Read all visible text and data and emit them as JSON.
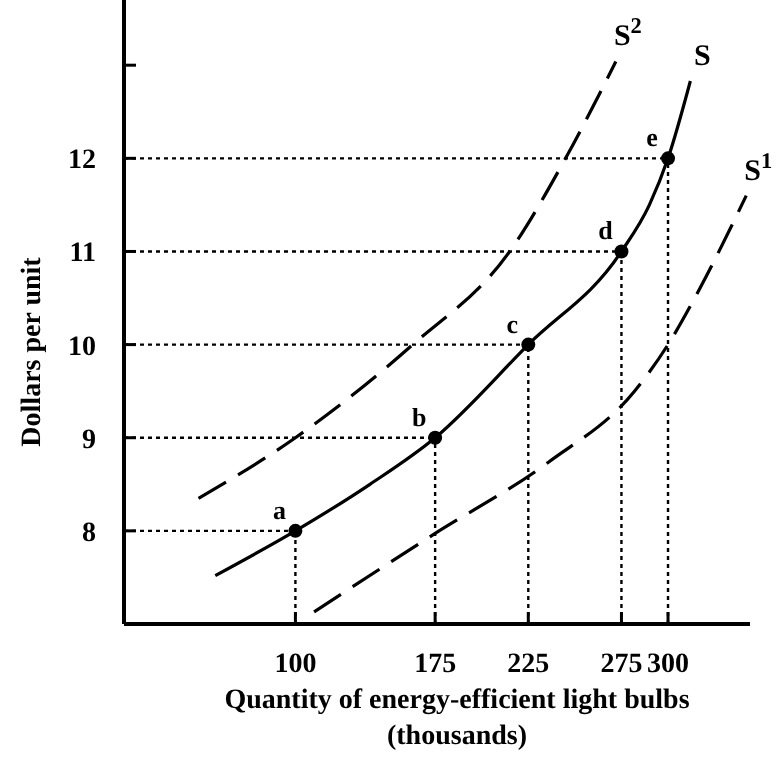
{
  "chart_data": {
    "type": "line",
    "xlabel": "Quantity of energy-efficient light bulbs\n(thousands)",
    "ylabel": "Dollars per unit",
    "xlim": [
      8,
      344
    ],
    "ylim": [
      7,
      13.7
    ],
    "xticks": [
      100,
      175,
      225,
      275,
      300
    ],
    "yticks": [
      8,
      9,
      10,
      11,
      12,
      {
        "value": 13,
        "label": null
      }
    ],
    "grid": false,
    "series": [
      {
        "name": "S",
        "color": "#000000",
        "line_style": "solid",
        "x": [
          57,
          100,
          140,
          175,
          225,
          275,
          290,
          300,
          312
        ],
        "values": [
          7.52,
          8,
          8.5,
          9,
          10,
          11,
          11.5,
          12,
          12.83
        ]
      },
      {
        "name": "S$^{1}$",
        "color": "#000000",
        "line_style": "dashed",
        "x": [
          110,
          174,
          236,
          282,
          300,
          317,
          342
        ],
        "values": [
          7.13,
          7.96,
          8.74,
          9.5,
          10,
          10.6,
          11.6
        ]
      },
      {
        "name": "S$^{2}$",
        "color": "#000000",
        "line_style": "dashed",
        "x": [
          48,
          100,
          163,
          215,
          245,
          272
        ],
        "values": [
          8.35,
          9,
          10,
          11,
          12,
          13.04
        ]
      },
      {
        "type": "scatter",
        "color": "#000000",
        "marker": "circle",
        "x": [
          100,
          175,
          225,
          275,
          300
        ],
        "values": [
          8,
          9,
          10,
          11,
          12
        ]
      }
    ],
    "ref_lines": [
      {
        "axis": "x",
        "value": 100,
        "line_style": "dotted"
      },
      {
        "axis": "x",
        "value": 175,
        "line_style": "dotted"
      },
      {
        "axis": "x",
        "value": 225,
        "line_style": "dotted"
      },
      {
        "axis": "x",
        "value": 275,
        "line_style": "dotted"
      },
      {
        "axis": "x",
        "value": 300,
        "line_style": "dotted"
      },
      {
        "axis": "y",
        "value": 8,
        "line_style": "dotted"
      },
      {
        "axis": "y",
        "value": 9,
        "line_style": "dotted"
      },
      {
        "axis": "y",
        "value": 10,
        "line_style": "dotted"
      },
      {
        "axis": "y",
        "value": 11,
        "line_style": "dotted"
      },
      {
        "axis": "y",
        "value": 12,
        "line_style": "dotted"
      }
    ],
    "annotations": [
      {
        "text": "a",
        "x": 100,
        "y": 8
      },
      {
        "text": "b",
        "x": 175,
        "y": 9
      },
      {
        "text": "c",
        "x": 225,
        "y": 10
      },
      {
        "text": "d",
        "x": 275,
        "y": 11
      },
      {
        "text": "e",
        "x": 300,
        "y": 12
      }
    ]
  }
}
